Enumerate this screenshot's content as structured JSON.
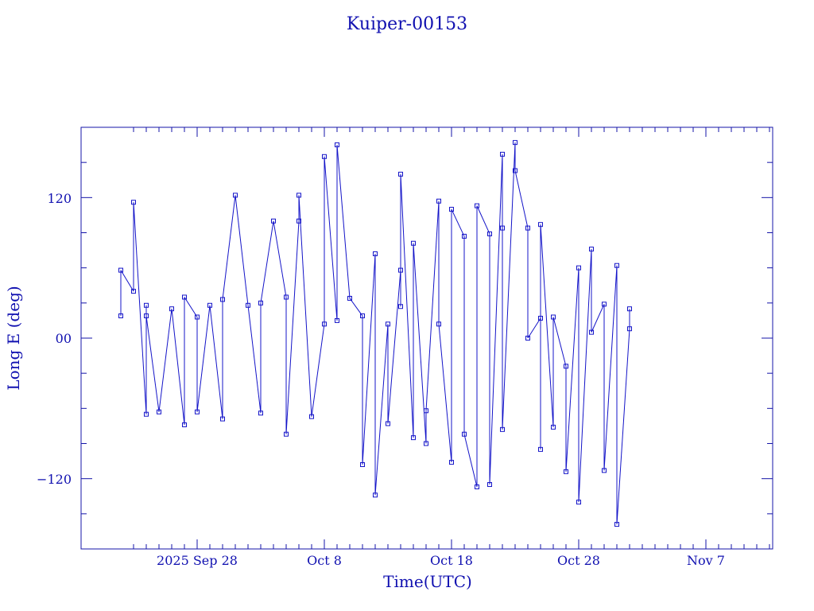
{
  "chart_data": {
    "type": "line",
    "title": "Kuiper-00153",
    "xlabel": "Time(UTC)",
    "ylabel": "Long E (deg)",
    "x_tick_labels": [
      "2025 Sep 28",
      "Oct  8",
      "Oct 18",
      "Oct 28",
      "Nov  7"
    ],
    "y_tick_labels": [
      "120",
      "00",
      "−120"
    ],
    "ylim": [
      -180,
      180
    ],
    "colors": {
      "axes": "#1414a8",
      "series": "#1414c8"
    },
    "grid": false,
    "series": [
      {
        "points": [
          [
            "2025-09-22",
            19
          ],
          [
            "2025-09-22",
            58
          ],
          [
            "2025-09-23",
            40
          ],
          [
            "2025-09-23",
            116
          ],
          [
            "2025-09-24",
            -65
          ],
          [
            "2025-09-24",
            28
          ],
          [
            "2025-09-24",
            19
          ],
          [
            "2025-09-25",
            -63
          ],
          [
            "2025-09-26",
            25
          ],
          [
            "2025-09-27",
            -74
          ],
          [
            "2025-09-27",
            35
          ],
          [
            "2025-09-28",
            18
          ],
          [
            "2025-09-28",
            -63
          ],
          [
            "2025-09-29",
            28
          ],
          [
            "2025-09-30",
            -69
          ],
          [
            "2025-09-30",
            33
          ],
          [
            "2025-10-01",
            122
          ],
          [
            "2025-10-02",
            28
          ],
          [
            "2025-10-03",
            -64
          ],
          [
            "2025-10-03",
            30
          ],
          [
            "2025-10-04",
            100
          ],
          [
            "2025-10-05",
            35
          ],
          [
            "2025-10-05",
            -82
          ],
          [
            "2025-10-06",
            100
          ],
          [
            "2025-10-06",
            122
          ],
          [
            "2025-10-07",
            -67
          ],
          [
            "2025-10-08",
            12
          ],
          [
            "2025-10-08",
            155
          ],
          [
            "2025-10-09",
            15
          ],
          [
            "2025-10-09",
            165
          ],
          [
            "2025-10-10",
            34
          ],
          [
            "2025-10-11",
            19
          ],
          [
            "2025-10-11",
            -108
          ],
          [
            "2025-10-12",
            72
          ],
          [
            "2025-10-12",
            -134
          ],
          [
            "2025-10-13",
            12
          ],
          [
            "2025-10-13",
            -73
          ],
          [
            "2025-10-14",
            58
          ],
          [
            "2025-10-14",
            27
          ],
          [
            "2025-10-14",
            140
          ],
          [
            "2025-10-15",
            -85
          ],
          [
            "2025-10-15",
            81
          ],
          [
            "2025-10-16",
            -90
          ],
          [
            "2025-10-16",
            -62
          ],
          [
            "2025-10-17",
            117
          ],
          [
            "2025-10-17",
            12
          ],
          [
            "2025-10-18",
            -106
          ],
          [
            "2025-10-18",
            110
          ],
          [
            "2025-10-19",
            87
          ],
          [
            "2025-10-19",
            -82
          ],
          [
            "2025-10-20",
            -127
          ],
          [
            "2025-10-20",
            113
          ],
          [
            "2025-10-21",
            89
          ],
          [
            "2025-10-21",
            -125
          ],
          [
            "2025-10-22",
            157
          ],
          [
            "2025-10-22",
            94
          ],
          [
            "2025-10-22",
            -78
          ],
          [
            "2025-10-23",
            167
          ],
          [
            "2025-10-23",
            143
          ],
          [
            "2025-10-24",
            94
          ],
          [
            "2025-10-24",
            0
          ],
          [
            "2025-10-25",
            17
          ],
          [
            "2025-10-25",
            -95
          ],
          [
            "2025-10-25",
            97
          ],
          [
            "2025-10-26",
            -76
          ],
          [
            "2025-10-26",
            18
          ],
          [
            "2025-10-27",
            -24
          ],
          [
            "2025-10-27",
            -114
          ],
          [
            "2025-10-28",
            60
          ],
          [
            "2025-10-28",
            -140
          ],
          [
            "2025-10-29",
            76
          ],
          [
            "2025-10-29",
            5
          ],
          [
            "2025-10-30",
            29
          ],
          [
            "2025-10-30",
            -113
          ],
          [
            "2025-10-31",
            62
          ],
          [
            "2025-10-31",
            -159
          ],
          [
            "2025-11-01",
            8
          ],
          [
            "2025-11-01",
            25
          ]
        ]
      }
    ]
  }
}
